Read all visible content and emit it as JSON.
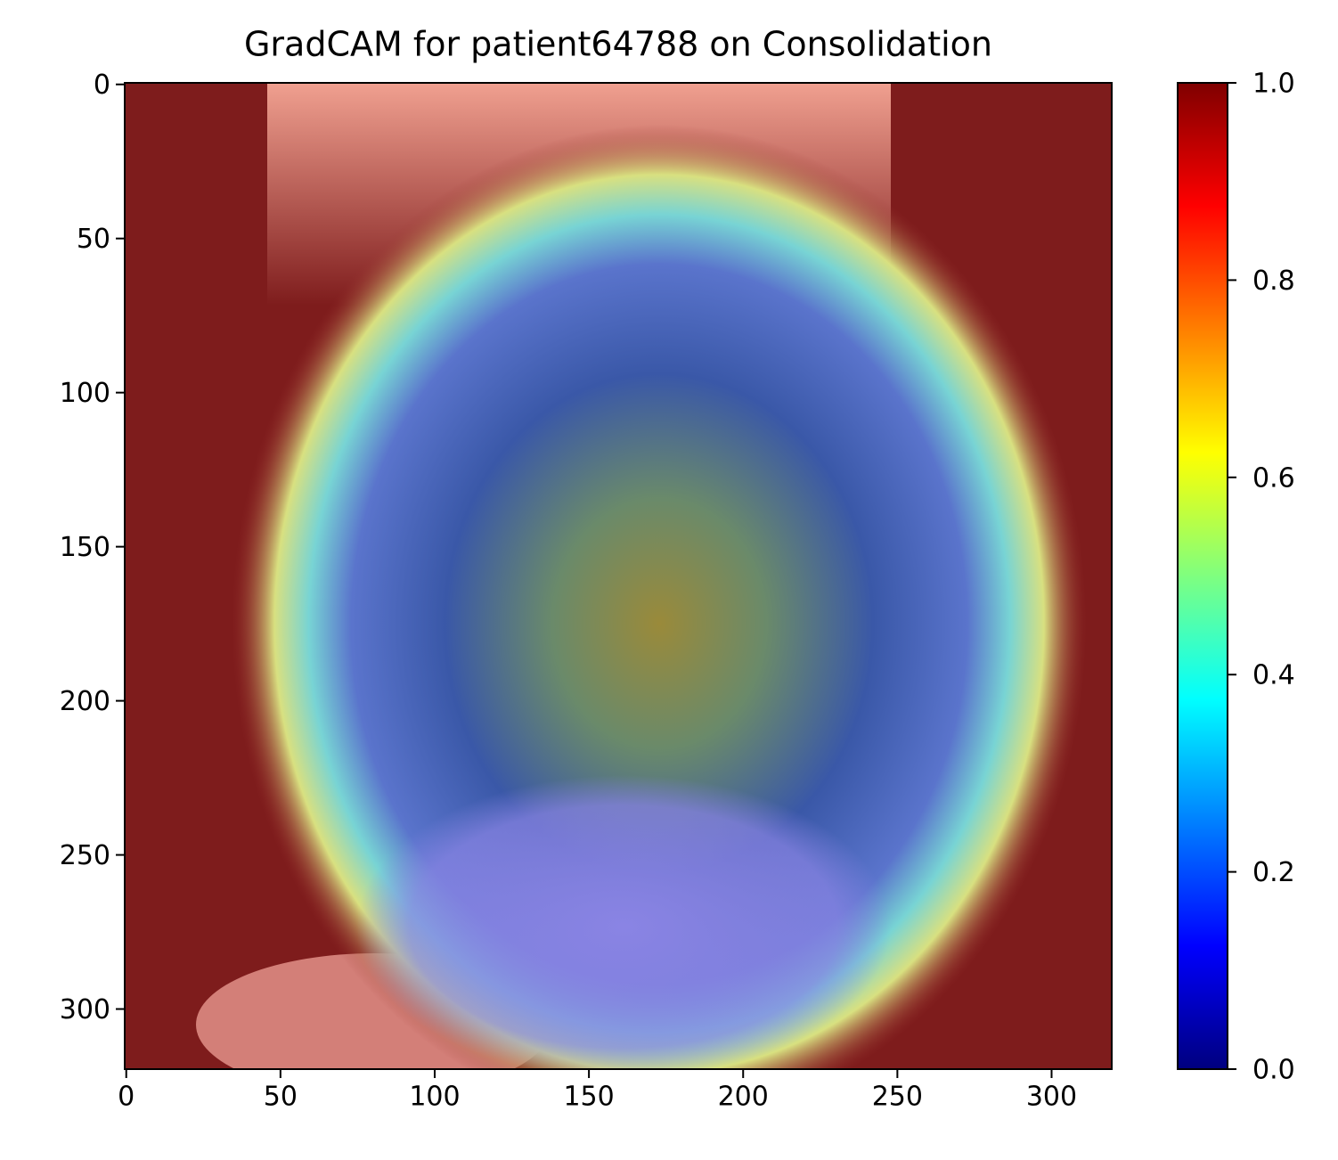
{
  "chart_data": {
    "type": "image",
    "title": "GradCAM for patient64788 on Consolidation",
    "xlim": [
      -0.5,
      319.5
    ],
    "xticks": [
      0,
      50,
      100,
      150,
      200,
      250,
      300
    ],
    "ylim": [
      319.5,
      -0.5
    ],
    "yticks": [
      0,
      50,
      100,
      150,
      200,
      250,
      300
    ],
    "colormap": "jet",
    "clim": [
      0,
      1
    ],
    "cticks": [
      {
        "value": 0,
        "label": "0.0"
      },
      0.2,
      0.4,
      0.6,
      0.8,
      {
        "value": 1,
        "label": "1.0"
      }
    ]
  }
}
